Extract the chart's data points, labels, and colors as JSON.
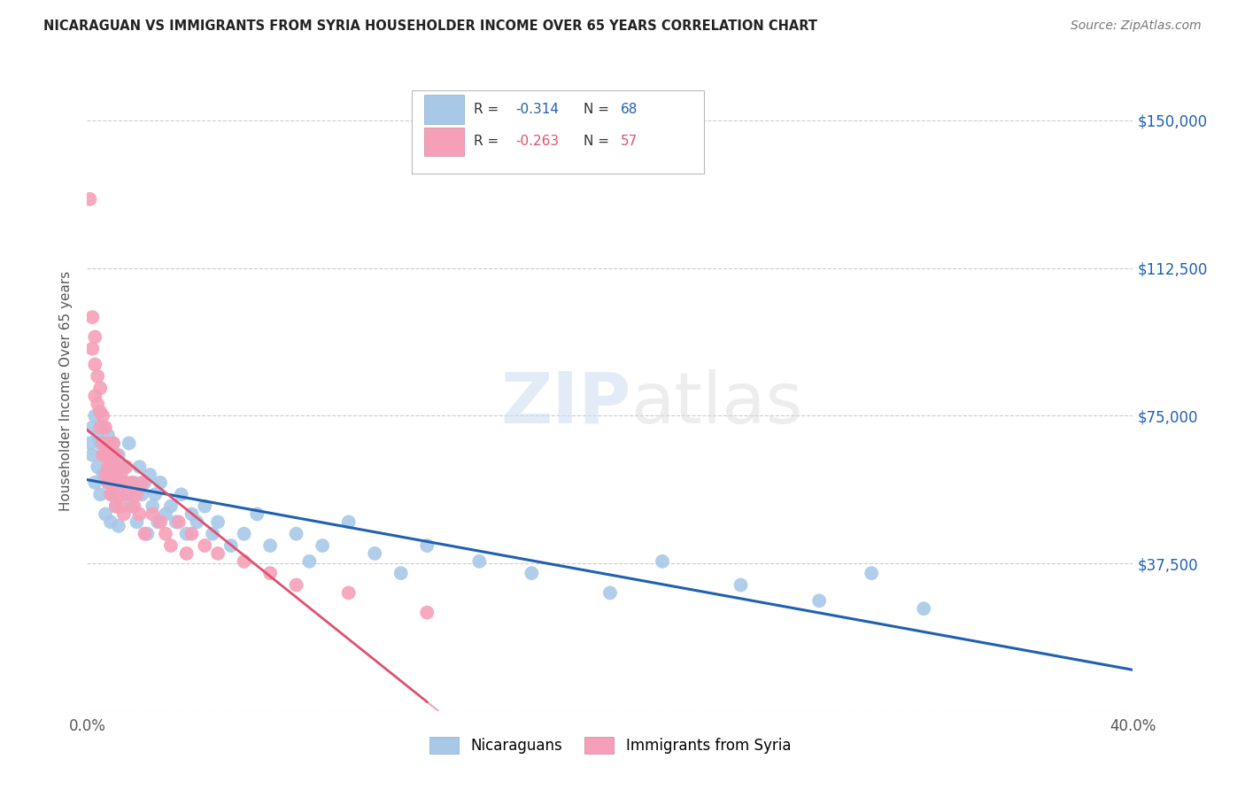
{
  "title": "NICARAGUAN VS IMMIGRANTS FROM SYRIA HOUSEHOLDER INCOME OVER 65 YEARS CORRELATION CHART",
  "source": "Source: ZipAtlas.com",
  "ylabel": "Householder Income Over 65 years",
  "xlim": [
    0.0,
    0.4
  ],
  "ylim": [
    0,
    162500
  ],
  "yticks": [
    0,
    37500,
    75000,
    112500,
    150000
  ],
  "ytick_labels": [
    "",
    "$37,500",
    "$75,000",
    "$112,500",
    "$150,000"
  ],
  "xticks": [
    0.0,
    0.05,
    0.1,
    0.15,
    0.2,
    0.25,
    0.3,
    0.35,
    0.4
  ],
  "xtick_labels": [
    "0.0%",
    "",
    "",
    "",
    "",
    "",
    "",
    "",
    "40.0%"
  ],
  "nicaraguan_color": "#a8c8e8",
  "syria_color": "#f5a0b8",
  "nicaraguan_line_color": "#2060b0",
  "syria_line_color": "#e05070",
  "R_nicaraguan": -0.314,
  "N_nicaraguan": 68,
  "R_syria": -0.263,
  "N_syria": 57,
  "background_color": "#ffffff",
  "nicaraguan_x": [
    0.001,
    0.002,
    0.002,
    0.003,
    0.003,
    0.004,
    0.004,
    0.005,
    0.005,
    0.006,
    0.006,
    0.007,
    0.007,
    0.008,
    0.008,
    0.009,
    0.009,
    0.01,
    0.01,
    0.011,
    0.011,
    0.012,
    0.012,
    0.013,
    0.014,
    0.015,
    0.016,
    0.017,
    0.018,
    0.019,
    0.02,
    0.021,
    0.022,
    0.023,
    0.024,
    0.025,
    0.026,
    0.027,
    0.028,
    0.03,
    0.032,
    0.034,
    0.036,
    0.038,
    0.04,
    0.042,
    0.045,
    0.048,
    0.05,
    0.055,
    0.06,
    0.065,
    0.07,
    0.08,
    0.085,
    0.09,
    0.1,
    0.11,
    0.12,
    0.13,
    0.15,
    0.17,
    0.2,
    0.22,
    0.25,
    0.28,
    0.3,
    0.32
  ],
  "nicaraguan_y": [
    68000,
    72000,
    65000,
    75000,
    58000,
    70000,
    62000,
    68000,
    55000,
    72000,
    60000,
    65000,
    50000,
    70000,
    58000,
    62000,
    48000,
    68000,
    55000,
    60000,
    52000,
    65000,
    47000,
    58000,
    62000,
    55000,
    68000,
    52000,
    58000,
    48000,
    62000,
    55000,
    58000,
    45000,
    60000,
    52000,
    55000,
    48000,
    58000,
    50000,
    52000,
    48000,
    55000,
    45000,
    50000,
    48000,
    52000,
    45000,
    48000,
    42000,
    45000,
    50000,
    42000,
    45000,
    38000,
    42000,
    48000,
    40000,
    35000,
    42000,
    38000,
    35000,
    30000,
    38000,
    32000,
    28000,
    35000,
    26000
  ],
  "syria_x": [
    0.001,
    0.002,
    0.002,
    0.003,
    0.003,
    0.003,
    0.004,
    0.004,
    0.005,
    0.005,
    0.005,
    0.006,
    0.006,
    0.006,
    0.007,
    0.007,
    0.007,
    0.008,
    0.008,
    0.008,
    0.009,
    0.009,
    0.009,
    0.01,
    0.01,
    0.01,
    0.011,
    0.011,
    0.011,
    0.012,
    0.012,
    0.013,
    0.013,
    0.014,
    0.014,
    0.015,
    0.016,
    0.017,
    0.018,
    0.019,
    0.02,
    0.021,
    0.022,
    0.025,
    0.028,
    0.03,
    0.032,
    0.035,
    0.038,
    0.04,
    0.045,
    0.05,
    0.06,
    0.07,
    0.08,
    0.1,
    0.13
  ],
  "syria_y": [
    130000,
    100000,
    92000,
    95000,
    88000,
    80000,
    85000,
    78000,
    82000,
    76000,
    72000,
    75000,
    68000,
    65000,
    72000,
    65000,
    60000,
    68000,
    62000,
    58000,
    65000,
    60000,
    55000,
    68000,
    62000,
    55000,
    65000,
    58000,
    52000,
    62000,
    55000,
    60000,
    52000,
    58000,
    50000,
    62000,
    55000,
    58000,
    52000,
    55000,
    50000,
    58000,
    45000,
    50000,
    48000,
    45000,
    42000,
    48000,
    40000,
    45000,
    42000,
    40000,
    38000,
    35000,
    32000,
    30000,
    25000
  ]
}
